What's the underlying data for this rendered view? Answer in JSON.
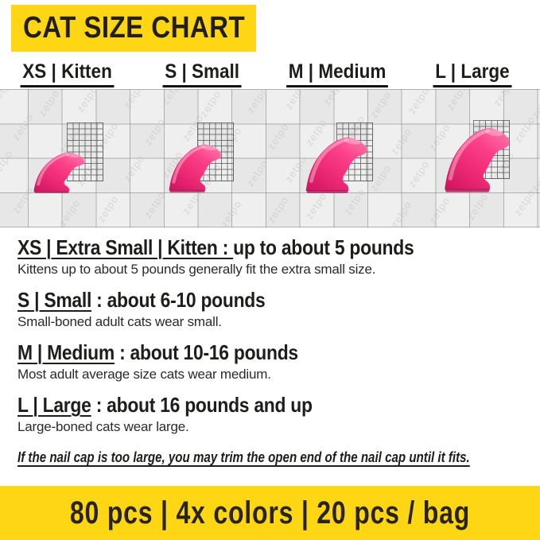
{
  "header": {
    "title": "CAT SIZE CHART"
  },
  "column_labels": [
    "XS | Kitten",
    "S | Small",
    "M | Medium",
    "L | Large"
  ],
  "watermark": "zetpo",
  "sections": [
    {
      "title_underlined": "XS | Extra Small | Kitten : ",
      "title_rest": " up to about 5 pounds",
      "description": "Kittens up to about 5 pounds generally fit the extra small size."
    },
    {
      "title_underlined": "S | Small",
      "title_rest": " : about 6-10 pounds",
      "description": "Small-boned adult cats wear small."
    },
    {
      "title_underlined": "M | Medium",
      "title_rest": " : about 10-16 pounds",
      "description": "Most adult average size cats wear medium."
    },
    {
      "title_underlined": "L | Large",
      "title_rest": " : about 16 pounds and up",
      "description": "Large-boned cats wear large."
    }
  ],
  "note": "If the nail cap is too large, you may trim the open end of the nail cap until it fits.",
  "footer": {
    "text": "80 pcs | 4x colors | 20 pcs / bag"
  },
  "colors": {
    "banner_yellow": "#ffd614",
    "text_black": "#1d1d1b",
    "cap_pink": "#f22e7a",
    "grid_line": "#8f8f8f",
    "watermark_gray": "#c3c3c3"
  }
}
